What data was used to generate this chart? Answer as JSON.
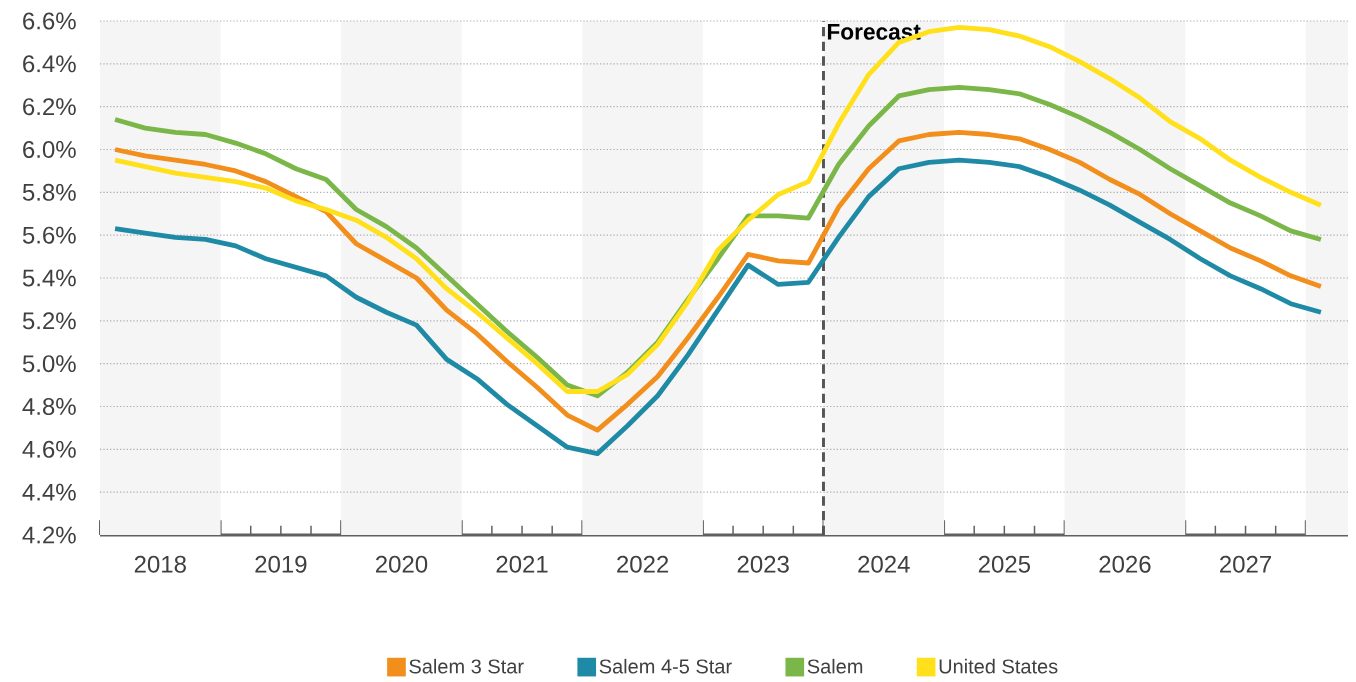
{
  "chart_data": {
    "type": "line",
    "x": [
      2018.125,
      2018.375,
      2018.625,
      2018.875,
      2019.125,
      2019.375,
      2019.625,
      2019.875,
      2020.125,
      2020.375,
      2020.625,
      2020.875,
      2021.125,
      2021.375,
      2021.625,
      2021.875,
      2022.125,
      2022.375,
      2022.625,
      2022.875,
      2023.125,
      2023.375,
      2023.625,
      2023.875,
      2024.125,
      2024.375,
      2024.625,
      2024.875,
      2025.125,
      2025.375,
      2025.625,
      2025.875,
      2026.125,
      2026.375,
      2026.625,
      2026.875,
      2027.125,
      2027.375,
      2027.625,
      2027.875,
      2028.125
    ],
    "series": [
      {
        "name": "Salem 3 Star",
        "color": "#f28e1c",
        "values": [
          6.0,
          5.97,
          5.95,
          5.93,
          5.9,
          5.85,
          5.78,
          5.71,
          5.56,
          5.48,
          5.4,
          5.25,
          5.14,
          5.01,
          4.89,
          4.76,
          4.69,
          4.81,
          4.94,
          5.12,
          5.31,
          5.51,
          5.48,
          5.47,
          5.73,
          5.91,
          6.04,
          6.07,
          6.08,
          6.07,
          6.05,
          6.0,
          5.94,
          5.86,
          5.79,
          5.7,
          5.62,
          5.54,
          5.48,
          5.41,
          5.36
        ]
      },
      {
        "name": "Salem 4-5 Star",
        "color": "#1f8aa6",
        "values": [
          5.63,
          5.61,
          5.59,
          5.58,
          5.55,
          5.49,
          5.45,
          5.41,
          5.31,
          5.24,
          5.18,
          5.02,
          4.93,
          4.81,
          4.71,
          4.61,
          4.58,
          4.71,
          4.85,
          5.04,
          5.25,
          5.46,
          5.37,
          5.38,
          5.59,
          5.78,
          5.91,
          5.94,
          5.95,
          5.94,
          5.92,
          5.87,
          5.81,
          5.74,
          5.66,
          5.58,
          5.49,
          5.41,
          5.35,
          5.28,
          5.24
        ]
      },
      {
        "name": "Salem",
        "color": "#7ab648",
        "values": [
          6.14,
          6.1,
          6.08,
          6.07,
          6.03,
          5.98,
          5.91,
          5.86,
          5.72,
          5.64,
          5.54,
          5.41,
          5.28,
          5.15,
          5.03,
          4.9,
          4.85,
          4.96,
          5.1,
          5.3,
          5.49,
          5.69,
          5.69,
          5.68,
          5.93,
          6.11,
          6.25,
          6.28,
          6.29,
          6.28,
          6.26,
          6.21,
          6.15,
          6.08,
          6.0,
          5.91,
          5.83,
          5.75,
          5.69,
          5.62,
          5.58
        ]
      },
      {
        "name": "United States",
        "color": "#ffe01a",
        "values": [
          5.95,
          5.92,
          5.89,
          5.87,
          5.85,
          5.82,
          5.76,
          5.72,
          5.67,
          5.59,
          5.49,
          5.35,
          5.24,
          5.12,
          5.0,
          4.87,
          4.87,
          4.95,
          5.09,
          5.29,
          5.53,
          5.67,
          5.79,
          5.85,
          6.12,
          6.35,
          6.5,
          6.55,
          6.57,
          6.56,
          6.53,
          6.48,
          6.41,
          6.33,
          6.24,
          6.13,
          6.05,
          5.95,
          5.87,
          5.8,
          5.74
        ]
      }
    ],
    "xlim": [
      2018,
      2028.35
    ],
    "xticks": [
      {
        "value": 2018,
        "label": null
      },
      {
        "value": 2019,
        "label": null
      },
      {
        "value": 2020,
        "label": null
      },
      {
        "value": 2021,
        "label": null
      },
      {
        "value": 2022,
        "label": null
      },
      {
        "value": 2023,
        "label": null
      },
      {
        "value": 2024,
        "label": null
      },
      {
        "value": 2025,
        "label": null
      },
      {
        "value": 2026,
        "label": null
      },
      {
        "value": 2027,
        "label": null
      },
      {
        "value": 2028,
        "label": null
      },
      {
        "value": 2018.25,
        "label": null
      },
      {
        "value": 2018.75,
        "label": null
      },
      {
        "value": 2019.25,
        "label": null
      },
      {
        "value": 2019.75,
        "label": null
      },
      {
        "value": 2020.25,
        "label": null
      },
      {
        "value": 2020.75,
        "label": null
      },
      {
        "value": 2021.25,
        "label": null
      },
      {
        "value": 2021.75,
        "label": null
      },
      {
        "value": 2022.25,
        "label": null
      },
      {
        "value": 2022.75,
        "label": null
      },
      {
        "value": 2023.25,
        "label": null
      },
      {
        "value": 2023.75,
        "label": null
      },
      {
        "value": 2024.25,
        "label": null
      },
      {
        "value": 2024.75,
        "label": null
      },
      {
        "value": 2025.25,
        "label": null
      },
      {
        "value": 2025.75,
        "label": null
      },
      {
        "value": 2026.25,
        "label": null
      },
      {
        "value": 2026.75,
        "label": null
      },
      {
        "value": 2027.25,
        "label": null
      },
      {
        "value": 2027.75,
        "label": null
      },
      {
        "value": 2028.25,
        "label": null
      },
      {
        "value": 2018.5,
        "label": "2018"
      },
      {
        "value": 2019.5,
        "label": "2019"
      },
      {
        "value": 2020.5,
        "label": "2020"
      },
      {
        "value": 2021.5,
        "label": "2021"
      },
      {
        "value": 2022.5,
        "label": "2022"
      },
      {
        "value": 2023.5,
        "label": "2023"
      },
      {
        "value": 2024.5,
        "label": "2024"
      },
      {
        "value": 2025.5,
        "label": "2025"
      },
      {
        "value": 2026.5,
        "label": "2026"
      },
      {
        "value": 2027.5,
        "label": "2027"
      }
    ],
    "ylim": [
      4.2,
      6.6
    ],
    "yticks": [
      {
        "value": 4.2,
        "label": "4.2%"
      },
      {
        "value": 4.4,
        "label": "4.4%"
      },
      {
        "value": 4.6,
        "label": "4.6%"
      },
      {
        "value": 4.8,
        "label": "4.8%"
      },
      {
        "value": 5.0,
        "label": "5.0%"
      },
      {
        "value": 5.2,
        "label": "5.2%"
      },
      {
        "value": 5.4,
        "label": "5.4%"
      },
      {
        "value": 5.6,
        "label": "5.6%"
      },
      {
        "value": 5.8,
        "label": "5.8%"
      },
      {
        "value": 6.0,
        "label": "6.0%"
      },
      {
        "value": 6.2,
        "label": "6.2%"
      },
      {
        "value": 6.4,
        "label": "6.4%"
      },
      {
        "value": 6.6,
        "label": "6.6%"
      }
    ],
    "bands": [
      {
        "axis": "x",
        "from": 2018,
        "to": 2019,
        "color": "#f5f5f5"
      },
      {
        "axis": "x",
        "from": 2020,
        "to": 2021,
        "color": "#f5f5f5"
      },
      {
        "axis": "x",
        "from": 2022,
        "to": 2023,
        "color": "#f5f5f5"
      },
      {
        "axis": "x",
        "from": 2024,
        "to": 2025,
        "color": "#f5f5f5"
      },
      {
        "axis": "x",
        "from": 2026,
        "to": 2027,
        "color": "#f5f5f5"
      },
      {
        "axis": "x",
        "from": 2028,
        "to": 2028.35,
        "color": "#f5f5f5"
      }
    ],
    "ref_lines": [
      {
        "axis": "x",
        "value": 2024,
        "label": "Forecast",
        "color": "#555555",
        "line_style": "dashed"
      }
    ],
    "grid": "y",
    "legend": "bottom",
    "marker": "none",
    "line_style": "solid"
  }
}
